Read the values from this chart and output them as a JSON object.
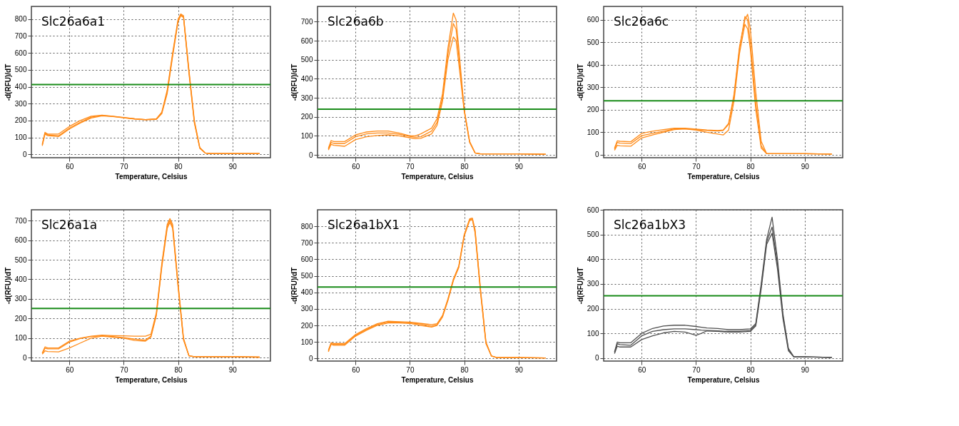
{
  "chart_data": [
    {
      "type": "line",
      "title": "Slc26a6a1",
      "xlabel": "Temperature, Celsius",
      "ylabel": "-d(RFU)/dT",
      "xlim": [
        53,
        97
      ],
      "xticks": [
        60,
        70,
        80,
        90
      ],
      "ylim": [
        -20,
        875
      ],
      "yticks": [
        0,
        100,
        200,
        300,
        400,
        500,
        600,
        700,
        800
      ],
      "grid": true,
      "marker": "none",
      "line_style": "solid",
      "x": [
        55,
        55.5,
        56,
        58,
        60,
        62,
        64,
        66,
        68,
        70,
        72,
        74,
        76,
        77,
        78,
        79,
        80,
        80.5,
        81,
        82,
        83,
        84,
        85,
        86,
        90,
        95
      ],
      "series": [
        {
          "color": "#ff8c1a",
          "values": [
            60,
            130,
            120,
            120,
            165,
            200,
            225,
            232,
            225,
            218,
            210,
            205,
            210,
            250,
            380,
            600,
            800,
            830,
            820,
            500,
            200,
            40,
            8,
            5,
            5,
            5
          ]
        },
        {
          "color": "#ff8c1a",
          "values": [
            55,
            125,
            115,
            110,
            155,
            190,
            220,
            230,
            224,
            217,
            210,
            205,
            208,
            245,
            370,
            590,
            790,
            825,
            815,
            490,
            190,
            38,
            8,
            5,
            5,
            5
          ]
        },
        {
          "color": "#ff8c1a",
          "values": [
            50,
            120,
            110,
            105,
            150,
            185,
            215,
            228,
            223,
            216,
            209,
            204,
            207,
            240,
            360,
            580,
            785,
            820,
            810,
            480,
            185,
            35,
            7,
            4,
            4,
            4
          ]
        }
      ],
      "ref_lines": [
        {
          "axis": "y",
          "value": 413,
          "color": "#1a8c1a"
        }
      ]
    },
    {
      "type": "line",
      "title": "Slc26a6b",
      "xlabel": "Temperature, Celsius",
      "ylabel": "-d(RFU)/dT",
      "xlim": [
        53,
        97
      ],
      "xticks": [
        60,
        70,
        80,
        90
      ],
      "ylim": [
        -15,
        780
      ],
      "yticks": [
        0,
        100,
        200,
        300,
        400,
        500,
        600,
        700
      ],
      "grid": true,
      "marker": "none",
      "line_style": "solid",
      "x": [
        55,
        55.5,
        56,
        58,
        60,
        62,
        64,
        66,
        68,
        70,
        71,
        72,
        74,
        75,
        76,
        77,
        78,
        78.5,
        79,
        80,
        81,
        82,
        83,
        85,
        90,
        95
      ],
      "series": [
        {
          "color": "#ff8c1a",
          "values": [
            35,
            75,
            70,
            70,
            105,
            120,
            125,
            125,
            115,
            100,
            100,
            110,
            140,
            190,
            320,
            560,
            745,
            710,
            560,
            240,
            70,
            10,
            5,
            5,
            5,
            3
          ]
        },
        {
          "color": "#ff8c1a",
          "values": [
            30,
            65,
            60,
            60,
            95,
            110,
            115,
            115,
            108,
            97,
            92,
            95,
            125,
            170,
            300,
            530,
            690,
            660,
            520,
            235,
            68,
            10,
            5,
            5,
            5,
            3
          ]
        },
        {
          "color": "#ff8c1a",
          "values": [
            25,
            55,
            50,
            45,
            80,
            95,
            102,
            105,
            100,
            90,
            85,
            87,
            110,
            155,
            280,
            500,
            620,
            600,
            480,
            230,
            65,
            10,
            5,
            5,
            5,
            3
          ]
        }
      ],
      "ref_lines": [
        {
          "axis": "y",
          "value": 240,
          "color": "#1a8c1a"
        }
      ]
    },
    {
      "type": "line",
      "title": "Slc26a6c",
      "xlabel": "Temperature, Celsius",
      "ylabel": "-d(RFU)/dT",
      "xlim": [
        53,
        97
      ],
      "xticks": [
        60,
        70,
        80,
        90
      ],
      "ylim": [
        -13,
        660
      ],
      "yticks": [
        0,
        100,
        200,
        300,
        400,
        500,
        600
      ],
      "grid": true,
      "marker": "none",
      "line_style": "solid",
      "x": [
        55,
        55.5,
        56,
        58,
        60,
        62,
        64,
        66,
        68,
        70,
        72,
        74,
        75,
        76,
        77,
        78,
        79,
        79.5,
        80,
        81,
        82,
        83,
        85,
        90,
        95
      ],
      "series": [
        {
          "color": "#ff8c1a",
          "values": [
            30,
            62,
            60,
            58,
            95,
            105,
            112,
            118,
            118,
            114,
            110,
            108,
            110,
            140,
            270,
            480,
            600,
            625,
            560,
            280,
            60,
            5,
            5,
            5,
            3
          ]
        },
        {
          "color": "#ff8c1a",
          "values": [
            25,
            55,
            52,
            50,
            85,
            95,
            105,
            115,
            115,
            112,
            108,
            106,
            108,
            135,
            260,
            470,
            615,
            600,
            500,
            230,
            40,
            5,
            5,
            5,
            3
          ]
        },
        {
          "color": "#ff8c1a",
          "values": [
            20,
            42,
            40,
            38,
            75,
            88,
            100,
            112,
            115,
            110,
            100,
            92,
            88,
            110,
            240,
            450,
            580,
            560,
            470,
            200,
            30,
            5,
            5,
            5,
            3
          ]
        }
      ],
      "ref_lines": [
        {
          "axis": "y",
          "value": 240,
          "color": "#1a8c1a"
        }
      ]
    },
    {
      "type": "line",
      "title": "Slc26a1a",
      "xlabel": "Temperature, Celsius",
      "ylabel": "-d(RFU)/dT",
      "xlim": [
        53,
        97
      ],
      "xticks": [
        60,
        70,
        80,
        90
      ],
      "ylim": [
        -17,
        755
      ],
      "yticks": [
        0,
        100,
        200,
        300,
        400,
        500,
        600,
        700
      ],
      "grid": true,
      "marker": "none",
      "line_style": "solid",
      "x": [
        55,
        55.5,
        56,
        58,
        60,
        62,
        64,
        66,
        68,
        70,
        72,
        74,
        75,
        76,
        77,
        78,
        78.5,
        79,
        80,
        81,
        82,
        83,
        85,
        90,
        95
      ],
      "series": [
        {
          "color": "#ff8c1a",
          "values": [
            25,
            55,
            50,
            50,
            85,
            100,
            110,
            115,
            113,
            112,
            110,
            110,
            120,
            230,
            480,
            680,
            710,
            680,
            380,
            100,
            10,
            5,
            5,
            5,
            3
          ]
        },
        {
          "color": "#ff8c1a",
          "values": [
            22,
            48,
            45,
            45,
            80,
            98,
            108,
            112,
            108,
            103,
            95,
            90,
            110,
            220,
            470,
            670,
            700,
            670,
            370,
            95,
            10,
            5,
            5,
            5,
            3
          ]
        },
        {
          "color": "#ff8c1a",
          "values": [
            18,
            35,
            32,
            30,
            50,
            75,
            100,
            110,
            105,
            100,
            88,
            85,
            105,
            215,
            460,
            660,
            690,
            660,
            360,
            90,
            10,
            5,
            5,
            5,
            3
          ]
        }
      ],
      "ref_lines": [
        {
          "axis": "y",
          "value": 252,
          "color": "#1a8c1a"
        }
      ]
    },
    {
      "type": "line",
      "title": "Slc26a1bX1",
      "xlabel": "Temperature, Celsius",
      "ylabel": "-d(RFU)/dT",
      "xlim": [
        53,
        97
      ],
      "xticks": [
        60,
        70,
        80,
        90
      ],
      "ylim": [
        -16,
        900
      ],
      "yticks": [
        0,
        100,
        200,
        300,
        400,
        500,
        600,
        700,
        800
      ],
      "grid": true,
      "marker": "none",
      "line_style": "solid",
      "x": [
        55,
        55.5,
        56,
        58,
        60,
        62,
        64,
        66,
        68,
        70,
        72,
        74,
        75,
        76,
        77,
        78,
        79,
        80,
        81,
        81.5,
        82,
        83,
        84,
        85,
        86,
        90,
        95
      ],
      "series": [
        {
          "color": "#ff8c1a",
          "values": [
            50,
            95,
            90,
            90,
            145,
            180,
            210,
            225,
            222,
            220,
            212,
            205,
            210,
            260,
            360,
            480,
            560,
            750,
            845,
            850,
            780,
            420,
            100,
            15,
            5,
            5,
            3
          ]
        },
        {
          "color": "#ff8c1a",
          "values": [
            45,
            90,
            85,
            85,
            140,
            175,
            205,
            220,
            220,
            215,
            208,
            195,
            205,
            255,
            355,
            475,
            555,
            745,
            840,
            845,
            770,
            410,
            95,
            15,
            5,
            5,
            3
          ]
        },
        {
          "color": "#ff8c1a",
          "values": [
            40,
            85,
            80,
            80,
            135,
            170,
            200,
            215,
            215,
            212,
            200,
            190,
            200,
            250,
            350,
            470,
            550,
            740,
            835,
            840,
            760,
            400,
            90,
            15,
            5,
            5,
            3
          ]
        }
      ],
      "ref_lines": [
        {
          "axis": "y",
          "value": 432,
          "color": "#1a8c1a"
        }
      ]
    },
    {
      "type": "line",
      "title": "Slc26a1bX3",
      "xlabel": "Temperature, Celsius",
      "ylabel": "-d(RFU)/dT",
      "xlim": [
        53,
        97
      ],
      "xticks": [
        60,
        70,
        80,
        90
      ],
      "ylim": [
        -12,
        600
      ],
      "yticks": [
        0,
        100,
        200,
        300,
        400,
        500,
        600
      ],
      "grid": true,
      "marker": "none",
      "line_style": "solid",
      "x": [
        55,
        55.5,
        56,
        58,
        60,
        62,
        64,
        66,
        68,
        70,
        71,
        72,
        74,
        76,
        78,
        80,
        81,
        82,
        83,
        84,
        85,
        86,
        87,
        88,
        90,
        95
      ],
      "series": [
        {
          "color": "#505050",
          "values": [
            25,
            65,
            62,
            62,
            100,
            120,
            130,
            133,
            133,
            128,
            125,
            122,
            120,
            115,
            115,
            118,
            140,
            300,
            480,
            570,
            400,
            180,
            40,
            5,
            5,
            3
          ]
        },
        {
          "color": "#505050",
          "values": [
            22,
            58,
            55,
            52,
            90,
            108,
            115,
            118,
            118,
            115,
            113,
            112,
            110,
            108,
            108,
            112,
            135,
            290,
            470,
            530,
            380,
            170,
            35,
            5,
            5,
            3
          ]
        },
        {
          "color": "#505050",
          "values": [
            18,
            48,
            45,
            45,
            75,
            90,
            102,
            108,
            105,
            92,
            100,
            110,
            108,
            105,
            105,
            108,
            130,
            280,
            460,
            505,
            360,
            160,
            30,
            5,
            5,
            3
          ]
        }
      ],
      "ref_lines": [
        {
          "axis": "y",
          "value": 252,
          "color": "#1a8c1a"
        }
      ]
    }
  ]
}
